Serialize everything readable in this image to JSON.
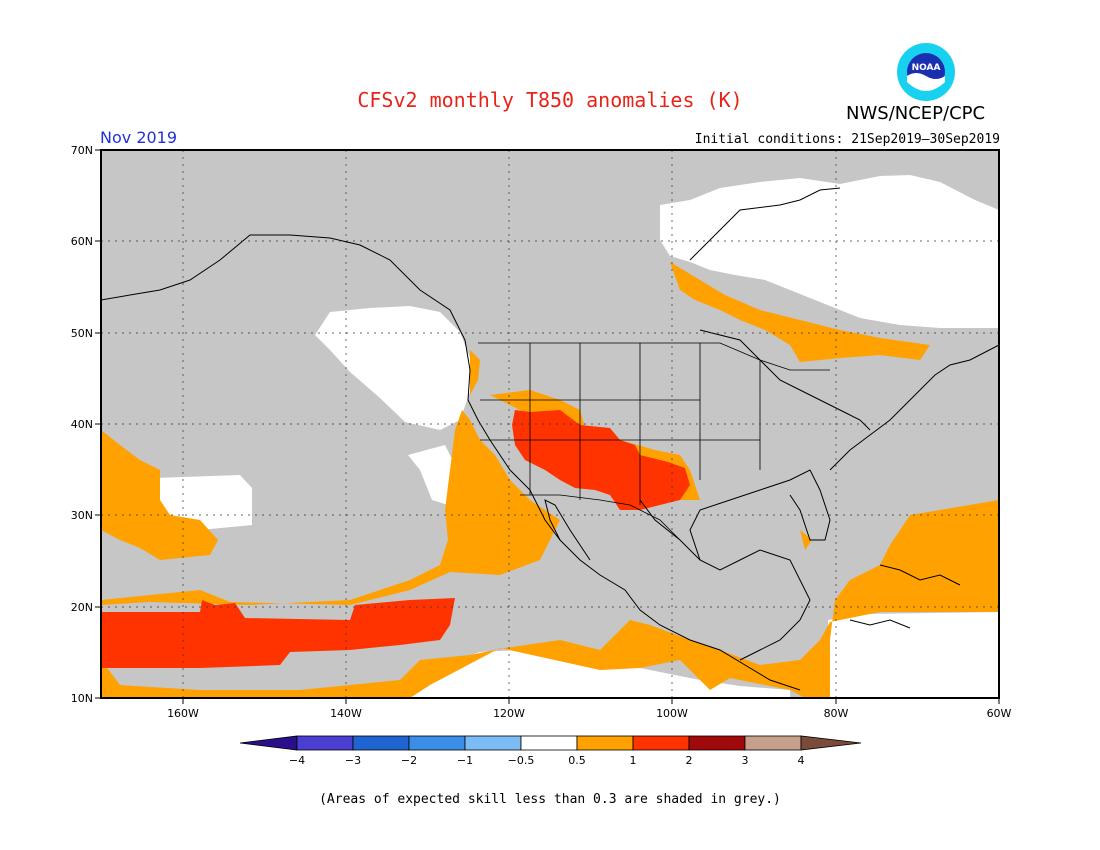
{
  "title": "CFSv2 monthly T850 anomalies (K)",
  "agency": "NWS/NCEP/CPC",
  "logo_text": "NOAA",
  "month": "Nov 2019",
  "initial_conditions": "Initial conditions: 21Sep2019—30Sep2019",
  "footnote": "(Areas of expected skill less than 0.3 are shaded in grey.)",
  "map": {
    "lon_range": [
      -170,
      -60
    ],
    "lat_range": [
      10,
      70
    ],
    "lon_labels": [
      "160W",
      "140W",
      "120W",
      "100W",
      "80W",
      "60W"
    ],
    "lat_labels": [
      "10N",
      "20N",
      "30N",
      "40N",
      "50N",
      "60N",
      "70N"
    ]
  },
  "colorbar": {
    "ticks": [
      "−4",
      "−3",
      "−2",
      "−1",
      "−0.5",
      "0.5",
      "1",
      "2",
      "3",
      "4"
    ],
    "colors": [
      "#2a0f8a",
      "#4a3fd0",
      "#1f64d0",
      "#3a8ee8",
      "#7bbcf5",
      "#ffffff",
      "#ffa100",
      "#ff3300",
      "#a00a0a",
      "#c6a08b",
      "#7a4a3a"
    ]
  },
  "colors": {
    "low_skill_grey": "#c6c6c6",
    "anomaly_05_1": "#ffa100",
    "anomaly_1_2": "#ff3300",
    "neutral": "#ffffff"
  }
}
